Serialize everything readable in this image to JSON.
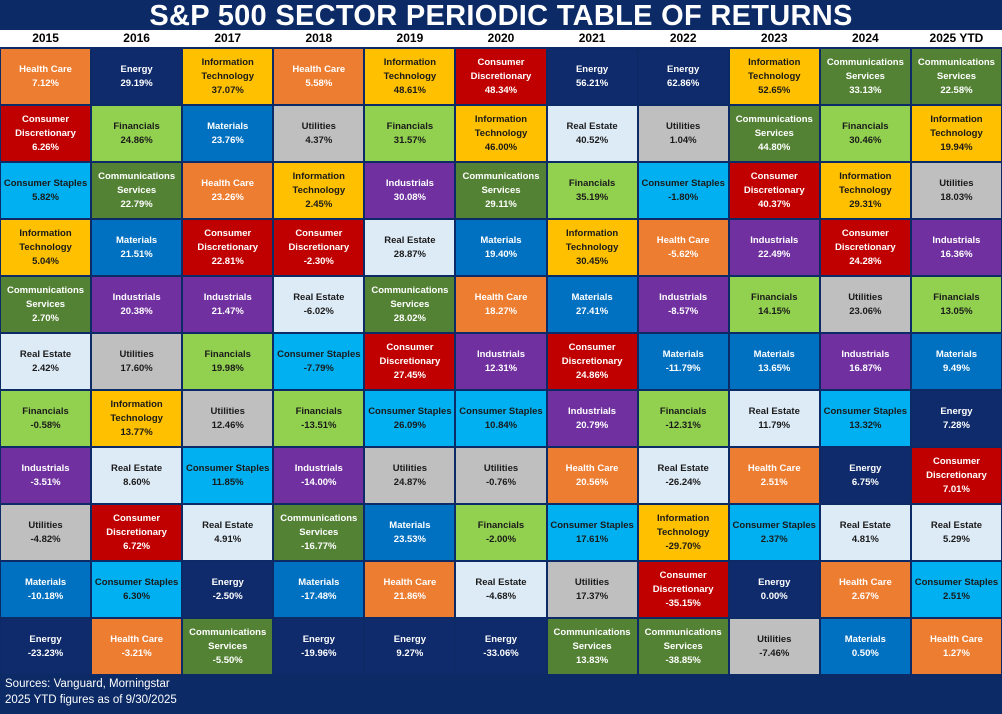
{
  "title": "S&P 500 SECTOR PERIODIC TABLE OF RETURNS",
  "footer": {
    "line1": "Sources: Vanguard, Morningstar",
    "line2": "2025 YTD figures as of 9/30/2025"
  },
  "colors": {
    "Health Care": {
      "bg": "#ed7d31",
      "fg": "#ffffff"
    },
    "Energy": {
      "bg": "#0f2b6b",
      "fg": "#ffffff"
    },
    "Information Technology": {
      "bg": "#ffc000",
      "fg": "#1a1a1a"
    },
    "Consumer Discretionary": {
      "bg": "#c00000",
      "fg": "#ffffff"
    },
    "Financials": {
      "bg": "#92d050",
      "fg": "#1a1a1a"
    },
    "Materials": {
      "bg": "#0070c0",
      "fg": "#ffffff"
    },
    "Utilities": {
      "bg": "#bfbfbf",
      "fg": "#1a1a1a"
    },
    "Communications Services": {
      "bg": "#548235",
      "fg": "#ffffff"
    },
    "Real Estate": {
      "bg": "#ddebf7",
      "fg": "#1a1a1a"
    },
    "Consumer Staples": {
      "bg": "#00b0f0",
      "fg": "#1a1a1a"
    },
    "Industrials": {
      "bg": "#7030a0",
      "fg": "#ffffff"
    }
  },
  "chart_data": {
    "type": "table",
    "title": "S&P 500 SECTOR PERIODIC TABLE OF RETURNS",
    "years": [
      "2015",
      "2016",
      "2017",
      "2018",
      "2019",
      "2020",
      "2021",
      "2022",
      "2023",
      "2024",
      "2025 YTD"
    ],
    "columns": [
      [
        {
          "sector": "Health Care",
          "label": "Health Care",
          "value": "7.12%"
        },
        {
          "sector": "Consumer Discretionary",
          "label": "Consumer\nDiscretionary",
          "value": "6.26%"
        },
        {
          "sector": "Consumer Staples",
          "label": "Consumer Staples",
          "value": "5.82%"
        },
        {
          "sector": "Information Technology",
          "label": "Information\nTechnology",
          "value": "5.04%"
        },
        {
          "sector": "Communications Services",
          "label": "Communications\nServices",
          "value": "2.70%"
        },
        {
          "sector": "Real Estate",
          "label": "Real Estate",
          "value": "2.42%"
        },
        {
          "sector": "Financials",
          "label": "Financials",
          "value": "-0.58%"
        },
        {
          "sector": "Industrials",
          "label": "Industrials",
          "value": "-3.51%"
        },
        {
          "sector": "Utilities",
          "label": "Utilities",
          "value": "-4.82%"
        },
        {
          "sector": "Materials",
          "label": "Materials",
          "value": "-10.18%"
        },
        {
          "sector": "Energy",
          "label": "Energy",
          "value": "-23.23%"
        }
      ],
      [
        {
          "sector": "Energy",
          "label": "Energy",
          "value": "29.19%"
        },
        {
          "sector": "Financials",
          "label": "Financials",
          "value": "24.86%"
        },
        {
          "sector": "Communications Services",
          "label": "Communications\nServices",
          "value": "22.79%"
        },
        {
          "sector": "Materials",
          "label": "Materials",
          "value": "21.51%"
        },
        {
          "sector": "Industrials",
          "label": "Industrials",
          "value": "20.38%"
        },
        {
          "sector": "Utilities",
          "label": "Utilities",
          "value": "17.60%"
        },
        {
          "sector": "Information Technology",
          "label": "Information\nTechnology",
          "value": "13.77%"
        },
        {
          "sector": "Real Estate",
          "label": "Real Estate",
          "value": "8.60%"
        },
        {
          "sector": "Consumer Discretionary",
          "label": "Consumer\nDiscretionary",
          "value": "6.72%"
        },
        {
          "sector": "Consumer Staples",
          "label": "Consumer Staples",
          "value": "6.30%"
        },
        {
          "sector": "Health Care",
          "label": "Health Care",
          "value": "-3.21%"
        }
      ],
      [
        {
          "sector": "Information Technology",
          "label": "Information\nTechnology",
          "value": "37.07%"
        },
        {
          "sector": "Materials",
          "label": "Materials",
          "value": "23.76%"
        },
        {
          "sector": "Health Care",
          "label": "Health Care",
          "value": "23.26%"
        },
        {
          "sector": "Consumer Discretionary",
          "label": "Consumer\nDiscretionary",
          "value": "22.81%"
        },
        {
          "sector": "Industrials",
          "label": "Industrials",
          "value": "21.47%"
        },
        {
          "sector": "Financials",
          "label": "Financials",
          "value": "19.98%"
        },
        {
          "sector": "Utilities",
          "label": "Utilities",
          "value": "12.46%"
        },
        {
          "sector": "Consumer Staples",
          "label": "Consumer Staples",
          "value": "11.85%"
        },
        {
          "sector": "Real Estate",
          "label": "Real Estate",
          "value": "4.91%"
        },
        {
          "sector": "Energy",
          "label": "Energy",
          "value": "-2.50%"
        },
        {
          "sector": "Communications Services",
          "label": "Communications\nServices",
          "value": "-5.50%"
        }
      ],
      [
        {
          "sector": "Health Care",
          "label": "Health Care",
          "value": "5.58%"
        },
        {
          "sector": "Utilities",
          "label": "Utilities",
          "value": "4.37%"
        },
        {
          "sector": "Information Technology",
          "label": "Information\nTechnology",
          "value": "2.45%"
        },
        {
          "sector": "Consumer Discretionary",
          "label": "Consumer\nDiscretionary",
          "value": "-2.30%"
        },
        {
          "sector": "Real Estate",
          "label": "Real Estate",
          "value": "-6.02%"
        },
        {
          "sector": "Consumer Staples",
          "label": "Consumer Staples",
          "value": "-7.79%"
        },
        {
          "sector": "Financials",
          "label": "Financials",
          "value": "-13.51%"
        },
        {
          "sector": "Industrials",
          "label": "Industrials",
          "value": "-14.00%"
        },
        {
          "sector": "Communications Services",
          "label": "Communications\nServices",
          "value": "-16.77%"
        },
        {
          "sector": "Materials",
          "label": "Materials",
          "value": "-17.48%"
        },
        {
          "sector": "Energy",
          "label": "Energy",
          "value": "-19.96%"
        }
      ],
      [
        {
          "sector": "Information Technology",
          "label": "Information\nTechnology",
          "value": "48.61%"
        },
        {
          "sector": "Financials",
          "label": "Financials",
          "value": "31.57%"
        },
        {
          "sector": "Industrials",
          "label": "Industrials",
          "value": "30.08%"
        },
        {
          "sector": "Real Estate",
          "label": "Real Estate",
          "value": "28.87%"
        },
        {
          "sector": "Communications Services",
          "label": "Communications\nServices",
          "value": "28.02%"
        },
        {
          "sector": "Consumer Discretionary",
          "label": "Consumer\nDiscretionary",
          "value": "27.45%"
        },
        {
          "sector": "Consumer Staples",
          "label": "Consumer Staples",
          "value": "26.09%"
        },
        {
          "sector": "Utilities",
          "label": "Utilities",
          "value": "24.87%"
        },
        {
          "sector": "Materials",
          "label": "Materials",
          "value": "23.53%"
        },
        {
          "sector": "Health Care",
          "label": "Health Care",
          "value": "21.86%"
        },
        {
          "sector": "Energy",
          "label": "Energy",
          "value": "9.27%"
        }
      ],
      [
        {
          "sector": "Consumer Discretionary",
          "label": "Consumer\nDiscretionary",
          "value": "48.34%"
        },
        {
          "sector": "Information Technology",
          "label": "Information\nTechnology",
          "value": "46.00%"
        },
        {
          "sector": "Communications Services",
          "label": "Communications\nServices",
          "value": "29.11%"
        },
        {
          "sector": "Materials",
          "label": "Materials",
          "value": "19.40%"
        },
        {
          "sector": "Health Care",
          "label": "Health Care",
          "value": "18.27%"
        },
        {
          "sector": "Industrials",
          "label": "Industrials",
          "value": "12.31%"
        },
        {
          "sector": "Consumer Staples",
          "label": "Consumer Staples",
          "value": "10.84%"
        },
        {
          "sector": "Utilities",
          "label": "Utilities",
          "value": "-0.76%"
        },
        {
          "sector": "Financials",
          "label": "Financials",
          "value": "-2.00%"
        },
        {
          "sector": "Real Estate",
          "label": "Real Estate",
          "value": "-4.68%"
        },
        {
          "sector": "Energy",
          "label": "Energy",
          "value": "-33.06%"
        }
      ],
      [
        {
          "sector": "Energy",
          "label": "Energy",
          "value": "56.21%"
        },
        {
          "sector": "Real Estate",
          "label": "Real Estate",
          "value": "40.52%"
        },
        {
          "sector": "Financials",
          "label": "Financials",
          "value": "35.19%"
        },
        {
          "sector": "Information Technology",
          "label": "Information\nTechnology",
          "value": "30.45%"
        },
        {
          "sector": "Materials",
          "label": "Materials",
          "value": "27.41%"
        },
        {
          "sector": "Consumer Discretionary",
          "label": "Consumer\nDiscretionary",
          "value": "24.86%"
        },
        {
          "sector": "Industrials",
          "label": "Industrials",
          "value": "20.79%"
        },
        {
          "sector": "Health Care",
          "label": "Health Care",
          "value": "20.56%"
        },
        {
          "sector": "Consumer Staples",
          "label": "Consumer Staples",
          "value": "17.61%"
        },
        {
          "sector": "Utilities",
          "label": "Utilities",
          "value": "17.37%"
        },
        {
          "sector": "Communications Services",
          "label": "Communications\nServices",
          "value": "13.83%"
        }
      ],
      [
        {
          "sector": "Energy",
          "label": "Energy",
          "value": "62.86%"
        },
        {
          "sector": "Utilities",
          "label": "Utilities",
          "value": "1.04%"
        },
        {
          "sector": "Consumer Staples",
          "label": "Consumer Staples",
          "value": "-1.80%"
        },
        {
          "sector": "Health Care",
          "label": "Health Care",
          "value": "-5.62%"
        },
        {
          "sector": "Industrials",
          "label": "Industrials",
          "value": "-8.57%"
        },
        {
          "sector": "Materials",
          "label": "Materials",
          "value": "-11.79%"
        },
        {
          "sector": "Financials",
          "label": "Financials",
          "value": "-12.31%"
        },
        {
          "sector": "Real Estate",
          "label": "Real Estate",
          "value": "-26.24%"
        },
        {
          "sector": "Information Technology",
          "label": "Information\nTechnology",
          "value": "-29.70%"
        },
        {
          "sector": "Consumer Discretionary",
          "label": "Consumer\nDiscretionary",
          "value": "-35.15%"
        },
        {
          "sector": "Communications Services",
          "label": "Communications\nServices",
          "value": "-38.85%"
        }
      ],
      [
        {
          "sector": "Information Technology",
          "label": "Information\nTechnology",
          "value": "52.65%"
        },
        {
          "sector": "Communications Services",
          "label": "Communications\nServices",
          "value": "44.80%"
        },
        {
          "sector": "Consumer Discretionary",
          "label": "Consumer\nDiscretionary",
          "value": "40.37%"
        },
        {
          "sector": "Industrials",
          "label": "Industrials",
          "value": "22.49%"
        },
        {
          "sector": "Financials",
          "label": "Financials",
          "value": "14.15%"
        },
        {
          "sector": "Materials",
          "label": "Materials",
          "value": "13.65%"
        },
        {
          "sector": "Real Estate",
          "label": "Real Estate",
          "value": "11.79%"
        },
        {
          "sector": "Health Care",
          "label": "Health Care",
          "value": "2.51%"
        },
        {
          "sector": "Consumer Staples",
          "label": "Consumer Staples",
          "value": "2.37%"
        },
        {
          "sector": "Energy",
          "label": "Energy",
          "value": "0.00%"
        },
        {
          "sector": "Utilities",
          "label": "Utilities",
          "value": "-7.46%"
        }
      ],
      [
        {
          "sector": "Communications Services",
          "label": "Communications\nServices",
          "value": "33.13%"
        },
        {
          "sector": "Financials",
          "label": "Financials",
          "value": "30.46%"
        },
        {
          "sector": "Information Technology",
          "label": "Information\nTechnology",
          "value": "29.31%"
        },
        {
          "sector": "Consumer Discretionary",
          "label": "Consumer\nDiscretionary",
          "value": "24.28%"
        },
        {
          "sector": "Utilities",
          "label": "Utilities",
          "value": "23.06%"
        },
        {
          "sector": "Industrials",
          "label": "Industrials",
          "value": "16.87%"
        },
        {
          "sector": "Consumer Staples",
          "label": "Consumer Staples",
          "value": "13.32%"
        },
        {
          "sector": "Energy",
          "label": "Energy",
          "value": "6.75%"
        },
        {
          "sector": "Real Estate",
          "label": "Real Estate",
          "value": "4.81%"
        },
        {
          "sector": "Health Care",
          "label": "Health Care",
          "value": "2.67%"
        },
        {
          "sector": "Materials",
          "label": "Materials",
          "value": "0.50%"
        }
      ],
      [
        {
          "sector": "Communications Services",
          "label": "Communications\nServices",
          "value": "22.58%"
        },
        {
          "sector": "Information Technology",
          "label": "Information\nTechnology",
          "value": "19.94%"
        },
        {
          "sector": "Utilities",
          "label": "Utilities",
          "value": "18.03%"
        },
        {
          "sector": "Industrials",
          "label": "Industrials",
          "value": "16.36%"
        },
        {
          "sector": "Financials",
          "label": "Financials",
          "value": "13.05%"
        },
        {
          "sector": "Materials",
          "label": "Materials",
          "value": "9.49%"
        },
        {
          "sector": "Energy",
          "label": "Energy",
          "value": "7.28%"
        },
        {
          "sector": "Consumer Discretionary",
          "label": "Consumer\nDiscretionary",
          "value": "7.01%"
        },
        {
          "sector": "Real Estate",
          "label": "Real Estate",
          "value": "5.29%"
        },
        {
          "sector": "Consumer Staples",
          "label": "Consumer Staples",
          "value": "2.51%"
        },
        {
          "sector": "Health Care",
          "label": "Health Care",
          "value": "1.27%"
        }
      ]
    ]
  }
}
